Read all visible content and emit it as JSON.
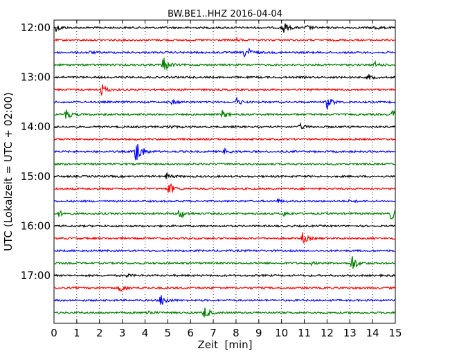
{
  "chart_data": {
    "type": "line",
    "title": "BW.BE1..HHZ 2016-04-04",
    "xlabel": "Zeit  [min]",
    "ylabel": "UTC (Lokalzeit = UTC + 02:00)",
    "xlim": [
      0,
      15
    ],
    "x_ticks": [
      0,
      1,
      2,
      3,
      4,
      5,
      6,
      7,
      8,
      9,
      10,
      11,
      12,
      13,
      14,
      15
    ],
    "y_tick_labels": [
      "12:00",
      "13:00",
      "14:00",
      "15:00",
      "16:00",
      "17:00"
    ],
    "trace_interval_minutes": 15,
    "grid": "vertical dotted at each minute",
    "trace_colors": [
      "#000000",
      "#ff0000",
      "#0000ff",
      "#008000"
    ],
    "traces": [
      {
        "start": "12:00",
        "events": [
          {
            "t": 0.1,
            "a": 5
          },
          {
            "t": 10.05,
            "a": 10
          },
          {
            "t": 11.1,
            "a": 3
          },
          {
            "t": 14.1,
            "a": 3
          }
        ]
      },
      {
        "start": "12:15",
        "events": [
          {
            "t": 8.0,
            "a": 2
          }
        ]
      },
      {
        "start": "12:30",
        "events": [
          {
            "t": 8.4,
            "a": 12
          },
          {
            "t": 1.5,
            "a": 2
          }
        ]
      },
      {
        "start": "12:45",
        "events": [
          {
            "t": 4.8,
            "a": 12
          },
          {
            "t": 14.1,
            "a": 4
          }
        ]
      },
      {
        "start": "13:00",
        "events": [
          {
            "t": 13.8,
            "a": 4
          }
        ]
      },
      {
        "start": "13:15",
        "events": [
          {
            "t": 2.1,
            "a": 9
          }
        ]
      },
      {
        "start": "13:30",
        "events": [
          {
            "t": 8.0,
            "a": 6
          },
          {
            "t": 12.0,
            "a": 10
          },
          {
            "t": 5.2,
            "a": 3
          }
        ]
      },
      {
        "start": "13:45",
        "events": [
          {
            "t": 0.5,
            "a": 9
          },
          {
            "t": 7.4,
            "a": 6
          },
          {
            "t": 14.9,
            "a": 8
          }
        ]
      },
      {
        "start": "14:00",
        "events": [
          {
            "t": 10.8,
            "a": 4
          },
          {
            "t": 5.0,
            "a": 3
          }
        ]
      },
      {
        "start": "14:15",
        "events": []
      },
      {
        "start": "14:30",
        "events": [
          {
            "t": 3.6,
            "a": 26
          },
          {
            "t": 7.5,
            "a": 4
          }
        ]
      },
      {
        "start": "14:45",
        "events": []
      },
      {
        "start": "15:00",
        "events": [
          {
            "t": 4.95,
            "a": 4
          }
        ]
      },
      {
        "start": "15:15",
        "events": [
          {
            "t": 5.05,
            "a": 10
          }
        ]
      },
      {
        "start": "15:30",
        "events": [
          {
            "t": 9.8,
            "a": 3
          },
          {
            "t": 13.0,
            "a": 2
          }
        ]
      },
      {
        "start": "15:45",
        "events": [
          {
            "t": 5.5,
            "a": 9
          },
          {
            "t": 0.2,
            "a": 4
          },
          {
            "t": 14.8,
            "a": 9
          },
          {
            "t": 10.1,
            "a": 3
          }
        ]
      },
      {
        "start": "16:00",
        "events": []
      },
      {
        "start": "16:15",
        "events": [
          {
            "t": 10.9,
            "a": 9
          }
        ]
      },
      {
        "start": "16:30",
        "events": []
      },
      {
        "start": "16:45",
        "events": [
          {
            "t": 13.1,
            "a": 13
          },
          {
            "t": 11.3,
            "a": 2
          }
        ]
      },
      {
        "start": "17:00",
        "events": [
          {
            "t": 3.2,
            "a": 2
          }
        ]
      },
      {
        "start": "17:15",
        "events": [
          {
            "t": 2.9,
            "a": 6
          }
        ]
      },
      {
        "start": "17:30",
        "events": [
          {
            "t": 4.7,
            "a": 10
          }
        ]
      },
      {
        "start": "17:45",
        "events": [
          {
            "t": 6.6,
            "a": 10
          },
          {
            "t": 4.1,
            "a": 4
          }
        ]
      }
    ]
  }
}
